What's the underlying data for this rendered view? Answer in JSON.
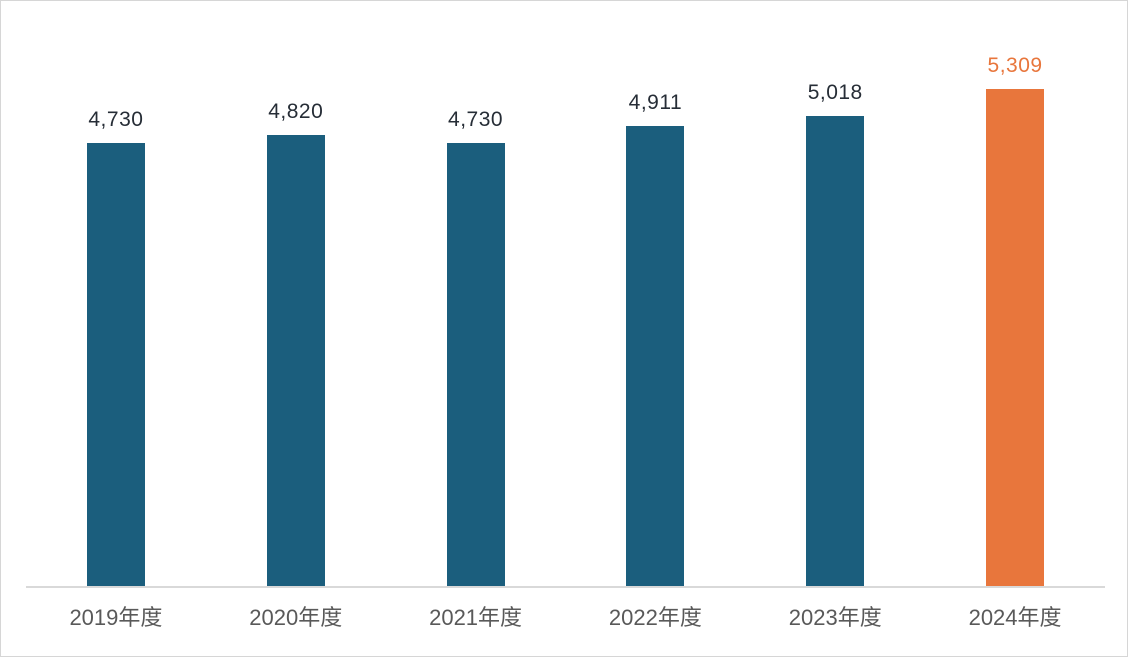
{
  "chart_data": {
    "type": "bar",
    "categories": [
      "2019年度",
      "2020年度",
      "2021年度",
      "2022年度",
      "2023年度",
      "2024年度"
    ],
    "values": [
      4730,
      4820,
      4730,
      4911,
      5018,
      5309
    ],
    "value_labels": [
      "4,730",
      "4,820",
      "4,730",
      "4,911",
      "5,018",
      "5,309"
    ],
    "title": "",
    "xlabel": "",
    "ylabel": "",
    "ylim": [
      0,
      5309
    ],
    "grid": false,
    "legend_position": "none",
    "highlight_index": 5,
    "bar_color_default": "#1b5e7d",
    "bar_color_highlight": "#e8763c",
    "label_color_default": "#262d36",
    "label_color_highlight": "#e8763c",
    "axis_line_color": "#d9d9d9",
    "axis_text_color": "#595959"
  }
}
